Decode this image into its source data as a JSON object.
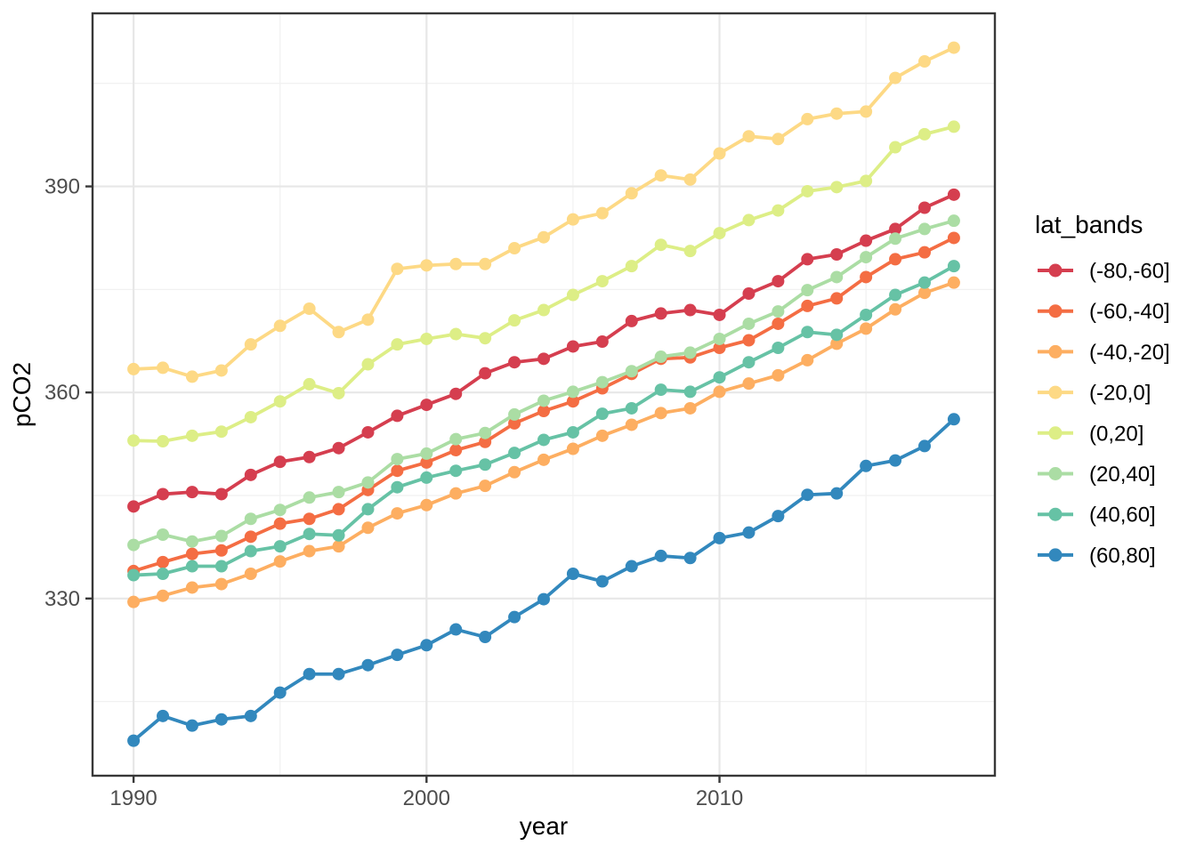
{
  "figure": {
    "background": "#ffffff",
    "panel_background": "#ffffff",
    "panel_border_color": "#383838",
    "grid_major_color": "#e7e7e7",
    "grid_minor_color": "#f1f1f1",
    "tick_mark_color": "#383838",
    "tick_label_color": "#4d4d4d",
    "axis_title_color": "#000000",
    "legend_text_color": "#000000"
  },
  "chart_data": {
    "type": "line",
    "title": "",
    "xlabel": "year",
    "ylabel": "pCO2",
    "legend_title": "lat_bands",
    "legend_position": "right",
    "grid": true,
    "xlim": [
      1988.6,
      2019.4
    ],
    "ylim": [
      304.2,
      415.2
    ],
    "x_ticks_major": [
      1990,
      2000,
      2010
    ],
    "x_ticks_minor": [
      1995,
      2005,
      2015
    ],
    "y_ticks_major": [
      330,
      360,
      390
    ],
    "y_ticks_minor": [
      315,
      345,
      375,
      405
    ],
    "x": [
      1990,
      1991,
      1992,
      1993,
      1994,
      1995,
      1996,
      1997,
      1998,
      1999,
      2000,
      2001,
      2002,
      2003,
      2004,
      2005,
      2006,
      2007,
      2008,
      2009,
      2010,
      2011,
      2012,
      2013,
      2014,
      2015,
      2016,
      2017,
      2018
    ],
    "series": [
      {
        "name": "(-80,-60]",
        "color": "#d53e4f",
        "values": [
          343.4,
          345.2,
          345.5,
          345.2,
          348.0,
          349.9,
          350.6,
          351.9,
          354.2,
          356.6,
          358.2,
          359.8,
          362.8,
          364.4,
          364.9,
          366.7,
          367.4,
          370.4,
          371.5,
          372.0,
          371.3,
          374.4,
          376.2,
          379.4,
          380.1,
          382.1,
          383.8,
          386.9,
          388.8
        ]
      },
      {
        "name": "(-60,-40]",
        "color": "#f46d43",
        "values": [
          334.0,
          335.3,
          336.5,
          337.0,
          339.0,
          340.9,
          341.6,
          343.0,
          345.8,
          348.6,
          349.8,
          351.6,
          352.8,
          355.5,
          357.3,
          358.7,
          360.6,
          362.7,
          364.9,
          365.1,
          366.5,
          367.6,
          370.0,
          372.6,
          373.7,
          376.8,
          379.4,
          380.4,
          382.5
        ]
      },
      {
        "name": "(-40,-20]",
        "color": "#fdae61",
        "values": [
          329.5,
          330.4,
          331.6,
          332.1,
          333.6,
          335.4,
          336.9,
          337.6,
          340.3,
          342.4,
          343.6,
          345.3,
          346.4,
          348.4,
          350.2,
          351.8,
          353.7,
          355.3,
          357.0,
          357.7,
          360.1,
          361.3,
          362.5,
          364.7,
          367.1,
          369.3,
          372.1,
          374.5,
          376.0
        ]
      },
      {
        "name": "(-20,0]",
        "color": "#fdd985",
        "values": [
          363.4,
          363.6,
          362.3,
          363.2,
          367.0,
          369.7,
          372.2,
          368.8,
          370.6,
          378.0,
          378.5,
          378.7,
          378.7,
          381.0,
          382.6,
          385.2,
          386.1,
          389.0,
          391.6,
          391.0,
          394.8,
          397.3,
          396.9,
          399.8,
          400.6,
          400.9,
          405.8,
          408.2,
          410.2
        ]
      },
      {
        "name": "(0,20]",
        "color": "#ddee86",
        "values": [
          353.0,
          352.9,
          353.7,
          354.3,
          356.4,
          358.7,
          361.2,
          359.9,
          364.1,
          367.0,
          367.8,
          368.5,
          367.9,
          370.5,
          372.0,
          374.2,
          376.2,
          378.4,
          381.5,
          380.6,
          383.2,
          385.1,
          386.5,
          389.3,
          389.9,
          390.8,
          395.7,
          397.6,
          398.7
        ]
      },
      {
        "name": "(20,40]",
        "color": "#abdda4",
        "values": [
          337.8,
          339.3,
          338.3,
          339.1,
          341.6,
          342.9,
          344.7,
          345.5,
          346.9,
          350.3,
          351.1,
          353.2,
          354.1,
          356.8,
          358.8,
          360.1,
          361.5,
          363.1,
          365.2,
          365.8,
          367.8,
          370.0,
          371.8,
          374.9,
          376.8,
          379.7,
          382.4,
          383.8,
          385.0
        ]
      },
      {
        "name": "(40,60]",
        "color": "#66c2a5",
        "values": [
          333.4,
          333.6,
          334.7,
          334.7,
          336.9,
          337.6,
          339.4,
          339.2,
          343.0,
          346.2,
          347.6,
          348.6,
          349.5,
          351.2,
          353.1,
          354.2,
          356.9,
          357.7,
          360.4,
          360.1,
          362.2,
          364.4,
          366.5,
          368.8,
          368.4,
          371.3,
          374.2,
          376.0,
          378.4
        ]
      },
      {
        "name": "(60,80]",
        "color": "#3288bd",
        "values": [
          309.3,
          312.9,
          311.5,
          312.4,
          312.9,
          316.3,
          319.0,
          319.0,
          320.3,
          321.8,
          323.2,
          325.5,
          324.4,
          327.3,
          329.9,
          333.6,
          332.5,
          334.7,
          336.2,
          335.9,
          338.8,
          339.6,
          342.0,
          345.1,
          345.3,
          349.3,
          350.1,
          352.2,
          356.1
        ]
      }
    ]
  }
}
